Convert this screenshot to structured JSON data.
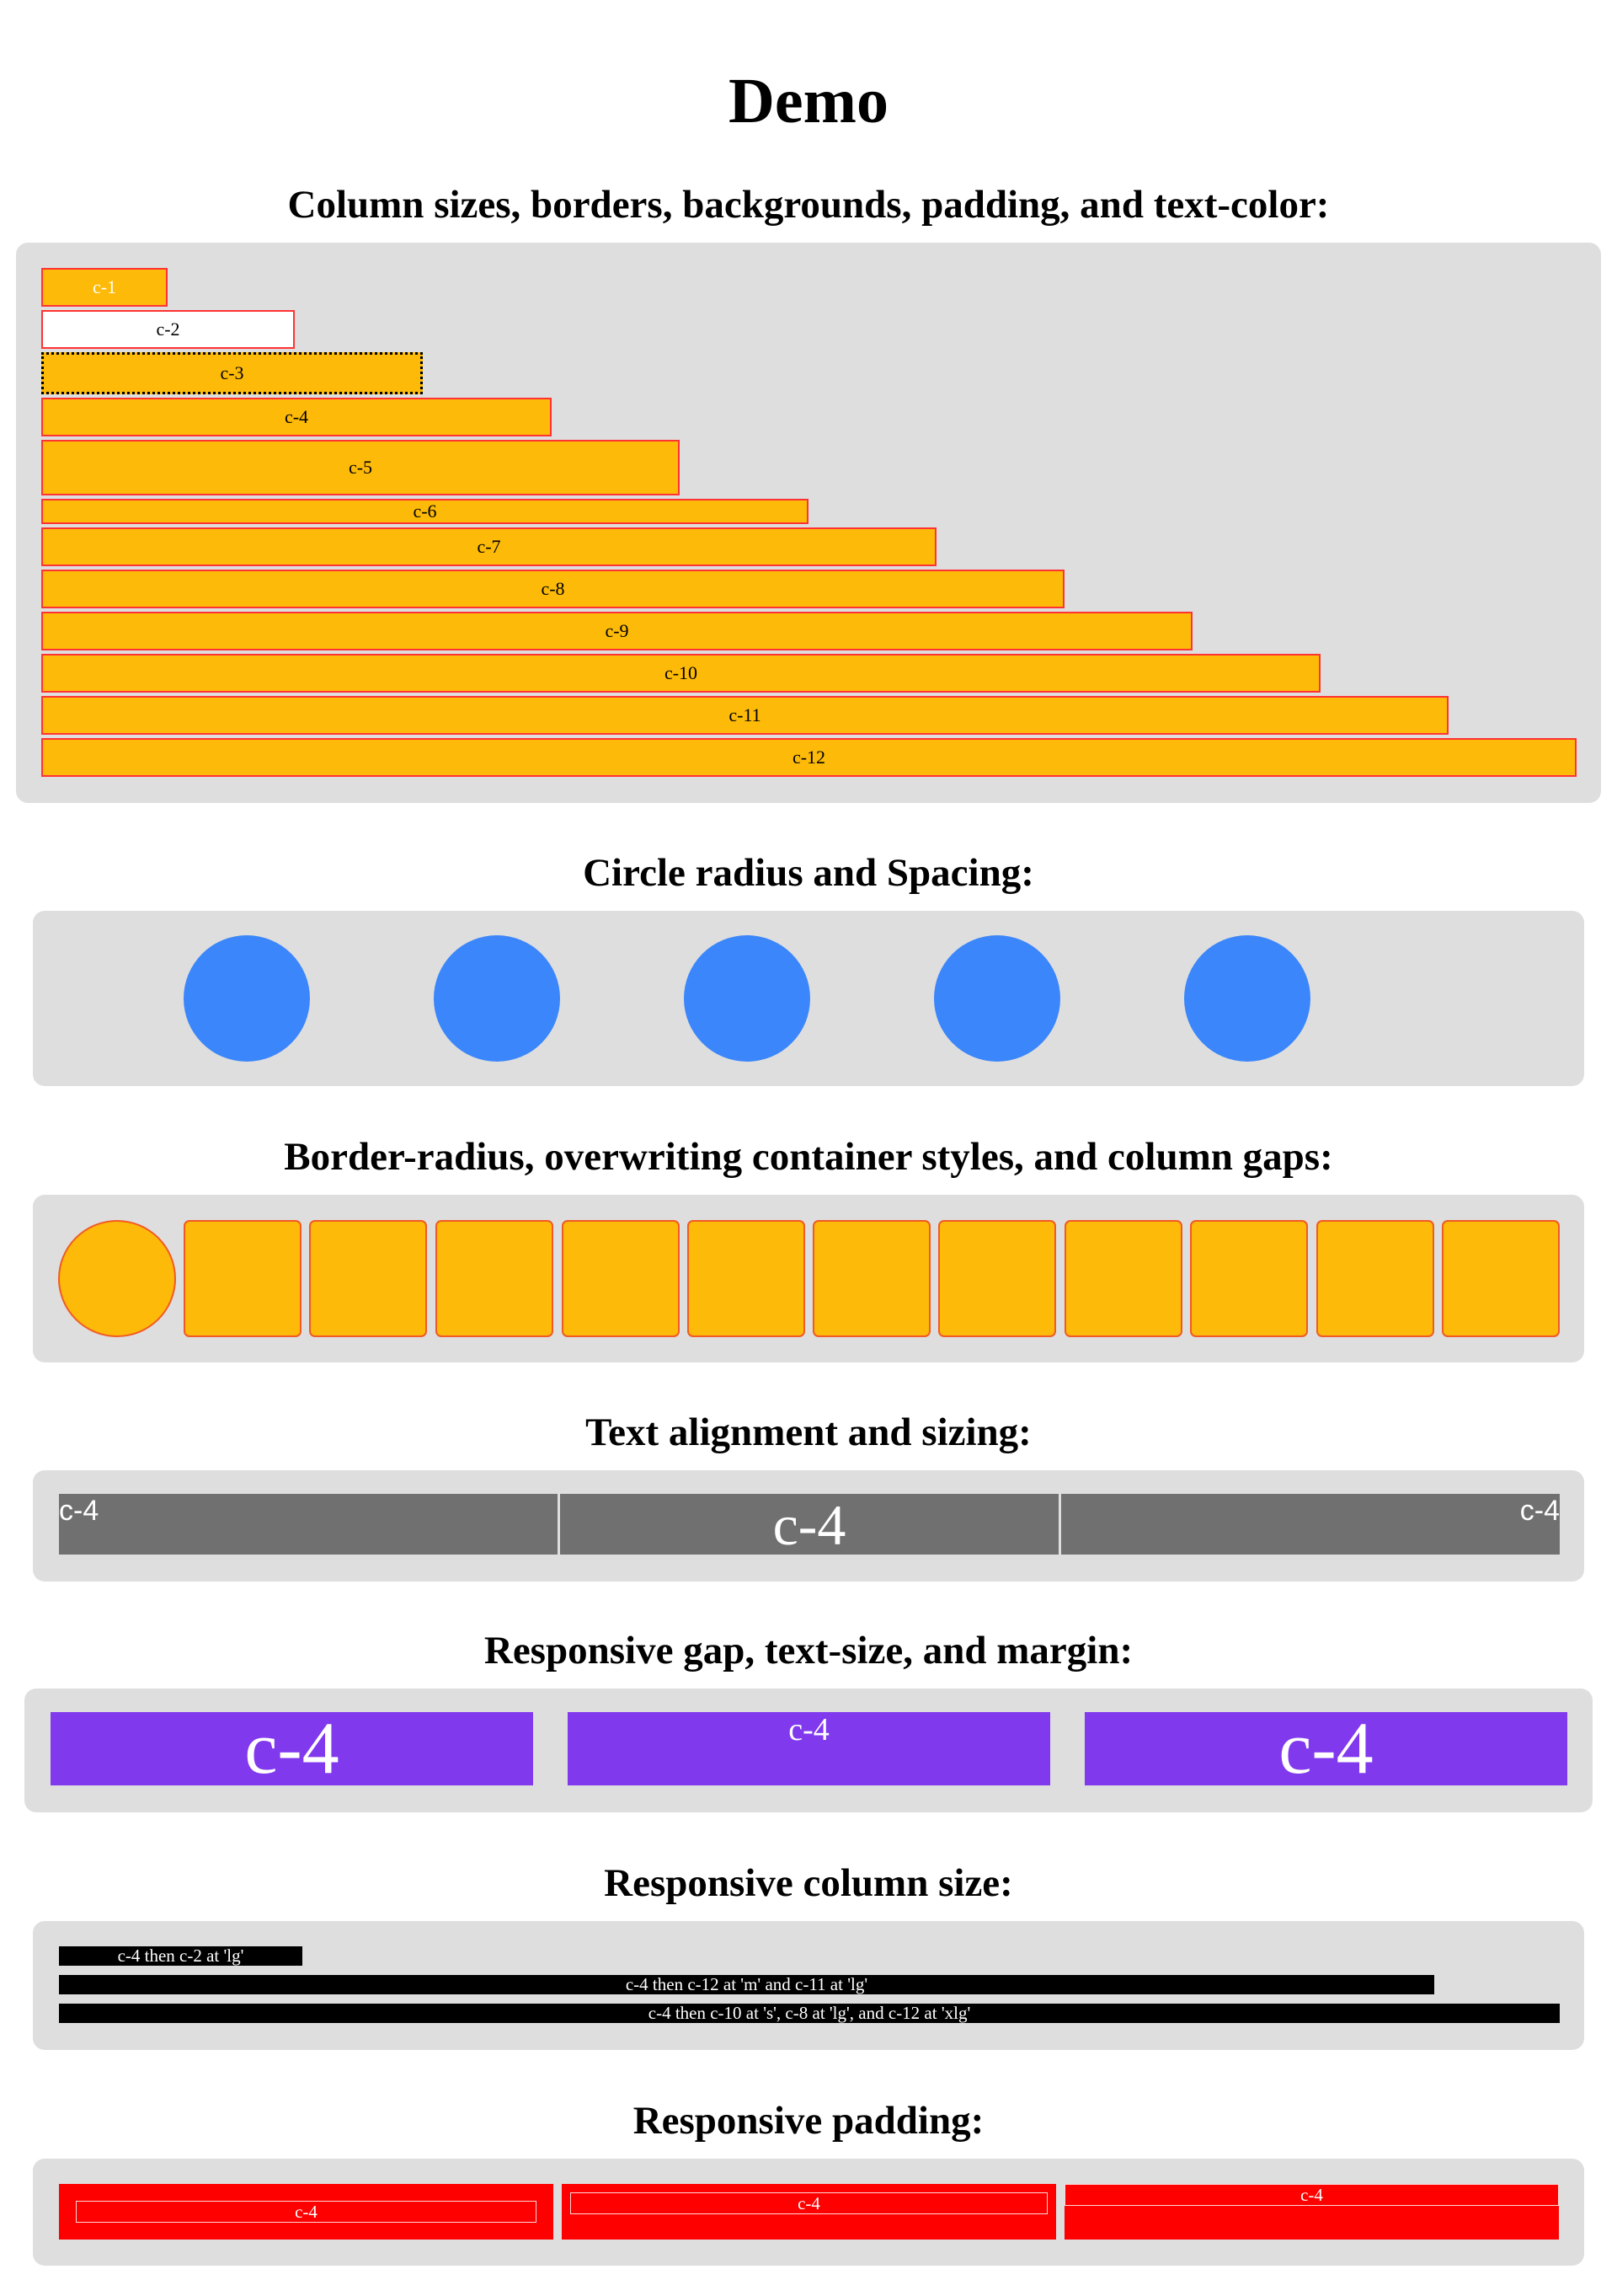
{
  "page": {
    "title": "Demo"
  },
  "sections": {
    "columns": {
      "heading": "Column sizes, borders, backgrounds, padding, and text-color:",
      "items": [
        {
          "label": "c-1"
        },
        {
          "label": "c-2"
        },
        {
          "label": "c-3"
        },
        {
          "label": "c-4"
        },
        {
          "label": "c-5"
        },
        {
          "label": "c-6"
        },
        {
          "label": "c-7"
        },
        {
          "label": "c-8"
        },
        {
          "label": "c-9"
        },
        {
          "label": "c-10"
        },
        {
          "label": "c-11"
        },
        {
          "label": "c-12"
        }
      ]
    },
    "circles": {
      "heading": "Circle radius and Spacing:",
      "count": 5
    },
    "radius": {
      "heading": "Border-radius, overwriting container styles, and column gaps:",
      "count": 12
    },
    "text_align": {
      "heading": "Text alignment and sizing:",
      "items": [
        {
          "label": "c-4"
        },
        {
          "label": "c-4"
        },
        {
          "label": "c-4"
        }
      ]
    },
    "responsive_gap": {
      "heading": "Responsive gap, text-size, and margin:",
      "items": [
        {
          "label": "c-4"
        },
        {
          "label": "c-4"
        },
        {
          "label": "c-4"
        }
      ]
    },
    "responsive_col": {
      "heading": "Responsive column size:",
      "items": [
        {
          "label": "c-4 then c-2 at 'lg'"
        },
        {
          "label": "c-4 then c-12 at 'm' and c-11 at 'lg'"
        },
        {
          "label": "c-4 then c-10 at 's', c-8 at 'lg', and c-12 at 'xlg'"
        }
      ]
    },
    "responsive_padding": {
      "heading": "Responsive padding:",
      "items": [
        {
          "label": "c-4"
        },
        {
          "label": "c-4"
        },
        {
          "label": "c-4"
        }
      ]
    }
  },
  "colors": {
    "panel": "#dedede",
    "amber": "#fdba08",
    "border_red": "#ff3333",
    "blue": "#3b86fa",
    "gray": "#707070",
    "purple": "#8139ee",
    "black": "#000000",
    "red": "#ff0000"
  }
}
